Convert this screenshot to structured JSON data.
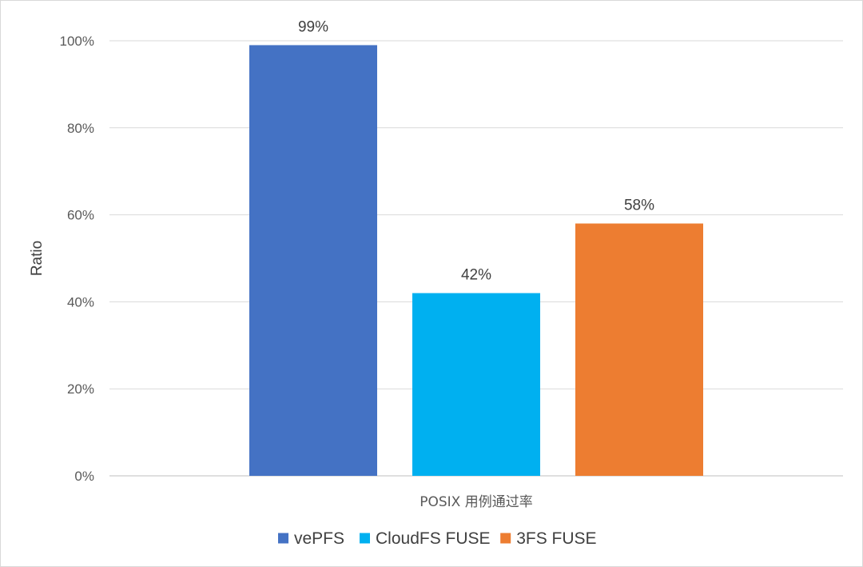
{
  "chart_data": {
    "type": "bar",
    "categories": [
      "POSIX 用例通过率"
    ],
    "series": [
      {
        "name": "vePFS",
        "values": [
          99
        ],
        "label": "99%",
        "color": "#4472C4"
      },
      {
        "name": "CloudFS FUSE",
        "values": [
          42
        ],
        "label": "42%",
        "color": "#00B0F0"
      },
      {
        "name": "3FS FUSE",
        "values": [
          58
        ],
        "label": "58%",
        "color": "#ED7D31"
      }
    ],
    "ylabel": "Ratio",
    "ylim": [
      0,
      100
    ],
    "yticks": [
      0,
      20,
      40,
      60,
      80,
      100
    ],
    "ytick_labels": [
      "0%",
      "20%",
      "40%",
      "60%",
      "80%",
      "100%"
    ],
    "grid": true,
    "legend_position": "bottom"
  }
}
